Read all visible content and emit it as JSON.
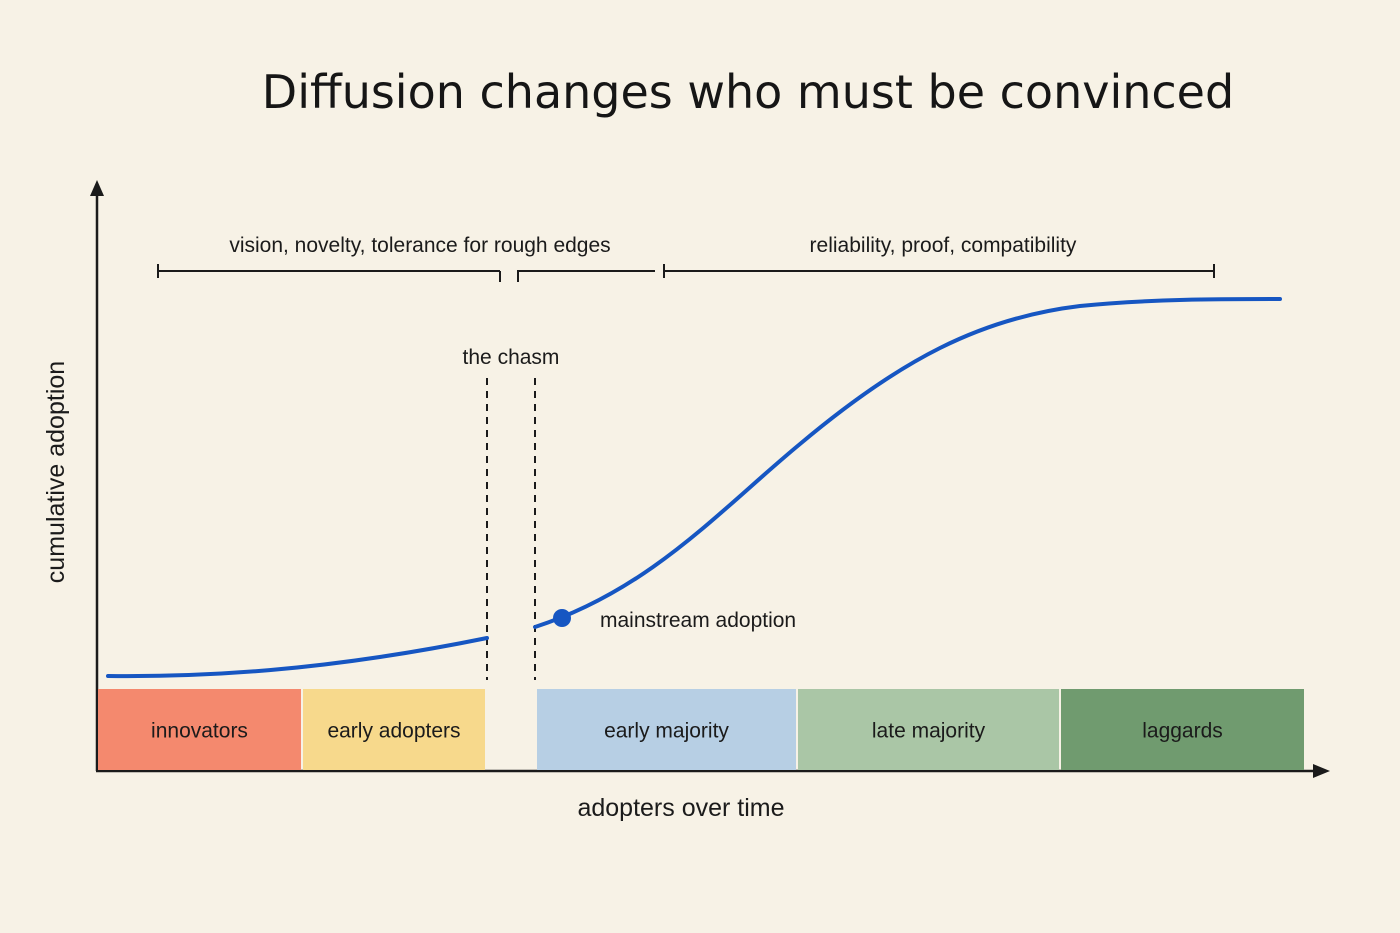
{
  "title": "Diffusion changes who must be convinced",
  "axes": {
    "y_label": "cumulative adoption",
    "x_label": "adopters over time"
  },
  "brackets": {
    "early_needs": "vision, novelty, tolerance for rough edges",
    "mainstream_needs": "reliability, proof, compatibility"
  },
  "chasm_label": "the chasm",
  "milestone_label": "mainstream adoption",
  "segments": [
    {
      "label": "innovators",
      "color": "#f4896e"
    },
    {
      "label": "early adopters",
      "color": "#f7d98c"
    },
    {
      "label": "early majority",
      "color": "#b7cfe4"
    },
    {
      "label": "late majority",
      "color": "#aac6a6"
    },
    {
      "label": "laggards",
      "color": "#709b6f"
    }
  ],
  "colors": {
    "curve": "#1656c2",
    "axis": "#1b1b1b",
    "background": "#f7f2e6"
  }
}
